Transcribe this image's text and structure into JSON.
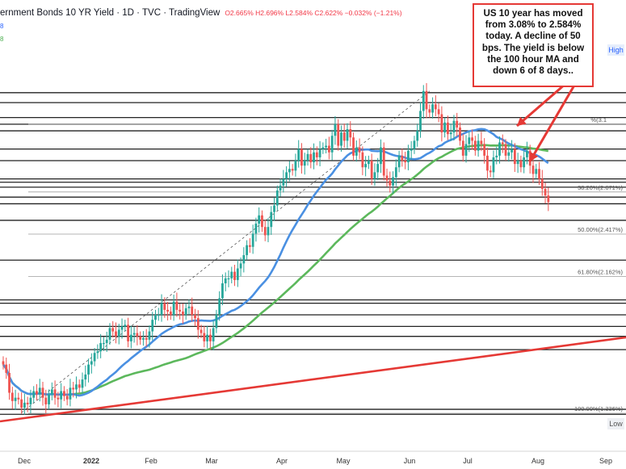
{
  "header": {
    "title": "ernment Bonds 10 YR Yield · 1D · TVC · TradingView",
    "ohlc": "O2.665% H2.696% L2.584% C2.622% −0.032% (−1.21%)"
  },
  "legend_values": [
    {
      "text": "8",
      "color": "#2962ff"
    },
    {
      "text": "8",
      "color": "#4caf50"
    }
  ],
  "annotation": "US 10 year has moved from 3.08% to 2.584% today. A decline of 50 bps.  The yield is below the 100 hour MA and down 6 of 8 days..",
  "high_label": "High",
  "low_label": "Low",
  "colors": {
    "up": "#26a69a",
    "down": "#ef5350",
    "ma_blue": "#4a90e2",
    "ma_green": "#5cb85c",
    "ma_red": "#e53935",
    "arrow": "#e53935"
  },
  "chart_data": {
    "type": "candlestick",
    "x_tick_labels": [
      "Dec",
      "2022",
      "Feb",
      "Mar",
      "Apr",
      "May",
      "Jun",
      "Jul",
      "Aug",
      "Sep"
    ],
    "ylim": [
      1.28,
      3.36
    ],
    "horizontal_lines": [
      3.27,
      3.21,
      3.12,
      3.08,
      3.04,
      2.93,
      2.86,
      2.75,
      2.73,
      2.7,
      2.64,
      2.6,
      2.5,
      2.26,
      2.02,
      2.0,
      1.93,
      1.86,
      1.8,
      1.72,
      1.36,
      1.33
    ],
    "fib_levels": [
      {
        "label": "38.20%(2.671%)",
        "value": 2.671
      },
      {
        "label": "50.00%(2.417%)",
        "value": 2.417
      },
      {
        "label": "61.80%(2.162%)",
        "value": 2.162
      },
      {
        "label": "100.00%(1.336%)",
        "value": 1.336
      }
    ],
    "fib_top_label": "%(3.1",
    "closes": [
      1.63,
      1.58,
      1.46,
      1.41,
      1.43,
      1.42,
      1.37,
      1.4,
      1.39,
      1.43,
      1.47,
      1.45,
      1.49,
      1.43,
      1.39,
      1.45,
      1.48,
      1.43,
      1.42,
      1.47,
      1.44,
      1.42,
      1.49,
      1.48,
      1.51,
      1.49,
      1.54,
      1.57,
      1.63,
      1.65,
      1.7,
      1.71,
      1.76,
      1.76,
      1.78,
      1.85,
      1.83,
      1.8,
      1.84,
      1.86,
      1.87,
      1.77,
      1.81,
      1.82,
      1.8,
      1.78,
      1.79,
      1.78,
      1.83,
      1.9,
      1.93,
      1.93,
      2.0,
      1.96,
      1.95,
      1.93,
      2.01,
      1.96,
      1.95,
      1.93,
      1.97,
      1.98,
      1.93,
      1.91,
      1.84,
      1.82,
      1.77,
      1.81,
      1.77,
      1.85,
      1.93,
      2.03,
      2.12,
      2.15,
      2.15,
      2.19,
      2.14,
      2.21,
      2.24,
      2.29,
      2.35,
      2.34,
      2.42,
      2.48,
      2.53,
      2.46,
      2.41,
      2.46,
      2.55,
      2.59,
      2.68,
      2.71,
      2.75,
      2.79,
      2.81,
      2.8,
      2.86,
      2.93,
      2.83,
      2.86,
      2.9,
      2.85,
      2.91,
      2.88,
      2.93,
      2.94,
      2.95,
      2.91,
      3.01,
      3.08,
      2.95,
      3.03,
      2.98,
      3.05,
      3.0,
      2.89,
      2.94,
      2.91,
      2.82,
      2.84,
      2.86,
      2.75,
      2.79,
      2.84,
      2.94,
      2.77,
      2.74,
      2.71,
      2.76,
      2.82,
      2.89,
      2.86,
      2.85,
      2.92,
      2.93,
      2.98,
      3.04,
      3.16,
      3.28,
      3.17,
      3.15,
      3.2,
      3.17,
      3.14,
      3.03,
      3.09,
      3.02,
      3.03,
      3.1,
      3.06,
      2.98,
      2.89,
      2.96,
      3.0,
      2.98,
      2.92,
      2.98,
      2.96,
      2.89,
      2.8,
      2.79,
      2.88,
      2.89,
      2.97,
      2.96,
      2.89,
      2.91,
      2.93,
      2.84,
      2.86,
      2.82,
      2.88,
      2.92,
      2.83,
      2.78,
      2.81,
      2.75,
      2.69,
      2.65,
      2.61
    ]
  }
}
